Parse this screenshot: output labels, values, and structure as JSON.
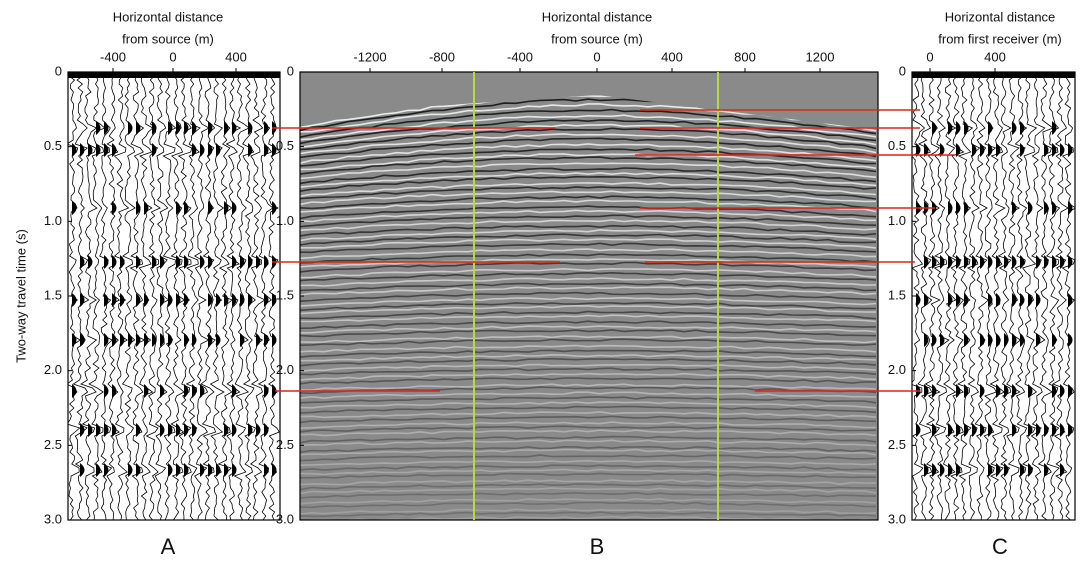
{
  "panels": [
    {
      "label": "A",
      "axis_title": "Horizontal distance",
      "axis_subtitle": "from source (m)",
      "x_ticks": [
        "-400",
        "0",
        "400"
      ]
    },
    {
      "label": "B",
      "axis_title": "Horizontal distance",
      "axis_subtitle": "from source (m)",
      "x_ticks": [
        "-1200",
        "-800",
        "-400",
        "0",
        "400",
        "800",
        "1200"
      ]
    },
    {
      "label": "C",
      "axis_title": "Horizontal distance",
      "axis_subtitle": "from first receiver (m)",
      "x_ticks": [
        "0",
        "400"
      ]
    }
  ],
  "y_axis": {
    "title": "Two-way travel time (s)",
    "ticks": [
      "0",
      "0.5",
      "1.0",
      "1.5",
      "2.0",
      "2.5",
      "3.0"
    ]
  }
}
